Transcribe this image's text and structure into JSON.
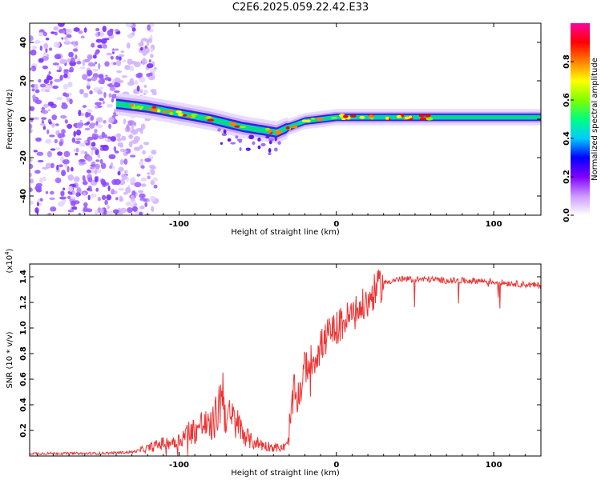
{
  "title": "C2E6.2025.059.22.42.E33",
  "chart_data": [
    {
      "type": "heatmap",
      "xlabel": "Height of straight line (km)",
      "ylabel": "Frequency (Hz)",
      "xlim": [
        -195,
        130
      ],
      "ylim": [
        -50,
        50
      ],
      "x_ticks": [
        -100,
        0,
        100
      ],
      "y_ticks": [
        -40,
        -20,
        0,
        20,
        40
      ],
      "grid": false,
      "colorbar": {
        "label": "Normalized spectral amplitude",
        "range": [
          0.0,
          1.0
        ],
        "ticks": [
          "0.0",
          "0.2",
          "0.4",
          "0.6",
          "0.8"
        ],
        "colors": [
          "#ffffff",
          "#cc99ff",
          "#8000ff",
          "#0000ff",
          "#00ccff",
          "#00ff80",
          "#80ff00",
          "#ffff00",
          "#ff8000",
          "#ff0000",
          "#ff00a0"
        ]
      },
      "ridge": {
        "x": [
          -140,
          -120,
          -100,
          -80,
          -60,
          -45,
          -38,
          -30,
          -20,
          -10,
          0,
          20,
          60,
          100,
          130
        ],
        "y": [
          8,
          6,
          3,
          0,
          -4,
          -6,
          -7,
          -4,
          -1,
          0,
          1,
          1,
          1,
          1,
          1
        ]
      },
      "noise_region_x": [
        -195,
        -120
      ]
    },
    {
      "type": "line",
      "xlabel": "Height of straight line (km)",
      "ylabel": "SNR (10 * v/v)",
      "y_multiplier": "(x10",
      "y_multiplier_exp": "4",
      "y_multiplier_close": ")",
      "xlim": [
        -195,
        130
      ],
      "ylim": [
        0,
        1.5
      ],
      "x_ticks": [
        -100,
        0,
        100
      ],
      "y_ticks": [
        "0.2",
        "0.4",
        "0.6",
        "0.8",
        "1.0",
        "1.2",
        "1.4"
      ],
      "color": "#ee3333",
      "series": [
        {
          "x": [
            -195,
            -150,
            -130,
            -120,
            -110,
            -100,
            -95,
            -90,
            -85,
            -80,
            -75,
            -73,
            -70,
            -65,
            -60,
            -55,
            -50,
            -45,
            -40,
            -35,
            -31,
            -29,
            -27,
            -25,
            -22,
            -20,
            -15,
            -10,
            -5,
            0,
            5,
            10,
            15,
            20,
            25,
            30,
            35,
            40,
            50,
            60,
            70,
            80,
            90,
            100,
            110,
            120,
            130
          ],
          "y": [
            0.02,
            0.02,
            0.03,
            0.06,
            0.1,
            0.12,
            0.18,
            0.2,
            0.25,
            0.22,
            0.35,
            0.55,
            0.3,
            0.28,
            0.2,
            0.12,
            0.1,
            0.08,
            0.07,
            0.06,
            0.08,
            0.3,
            0.5,
            0.45,
            0.55,
            0.7,
            0.75,
            0.85,
            0.95,
            1.0,
            1.05,
            1.1,
            1.15,
            1.2,
            1.3,
            1.35,
            1.37,
            1.38,
            1.38,
            1.38,
            1.37,
            1.37,
            1.37,
            1.36,
            1.35,
            1.34,
            1.33
          ]
        }
      ]
    }
  ]
}
